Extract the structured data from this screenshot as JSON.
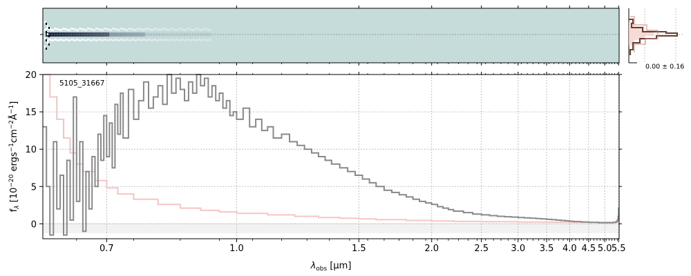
{
  "chart_data": [
    {
      "type": "heatmap",
      "panel": "2d-spectrum",
      "description_of_content": "",
      "x_axis_shared": true,
      "y_ticks": [
        ""
      ],
      "colormap": [
        "#ffffff",
        "#c5dcdb",
        "#1c2340"
      ]
    },
    {
      "type": "line",
      "panel": "spectrum",
      "object_label": "5105_31667",
      "xlabel_main": "λ",
      "xlabel_sub": "obs",
      "xlabel_unit": " [μm]",
      "ylabel": "f_λ [10^-20 ergs^-1cm^-2Å^-1]",
      "ylabel_parts": {
        "f": "f",
        "lambda": "λ",
        "main": " [10",
        "exp1": "−20",
        "mid": " ergs",
        "exp2": "−1",
        "mid2": "cm",
        "exp3": "−2",
        "angstrom": "Å",
        "exp4": "−1",
        "end": "]"
      },
      "x_scale": "reciprocal",
      "xlim": [
        0.6,
        5.52
      ],
      "ylim": [
        -2,
        20
      ],
      "x_ticks": [
        0.7,
        1.0,
        1.5,
        2.0,
        2.5,
        3.0,
        3.5,
        4.0,
        4.5,
        5.0,
        5.5
      ],
      "x_tick_labels": [
        "0.7",
        "1.0",
        "1.5",
        "2.0",
        "2.5",
        "3.0",
        "3.5",
        "4.0",
        "4.5",
        "5.0",
        "5.5"
      ],
      "y_ticks": [
        0,
        5,
        10,
        15,
        20
      ],
      "y_tick_labels": [
        "0",
        "5",
        "10",
        "15",
        "20"
      ],
      "grid": true,
      "series": [
        {
          "role": "flux",
          "color": "#888888",
          "x": [
            0.6,
            0.605,
            0.61,
            0.615,
            0.62,
            0.625,
            0.63,
            0.635,
            0.64,
            0.645,
            0.65,
            0.655,
            0.66,
            0.665,
            0.67,
            0.675,
            0.68,
            0.685,
            0.69,
            0.695,
            0.7,
            0.705,
            0.71,
            0.715,
            0.72,
            0.725,
            0.73,
            0.74,
            0.75,
            0.76,
            0.77,
            0.78,
            0.79,
            0.8,
            0.81,
            0.82,
            0.83,
            0.84,
            0.85,
            0.86,
            0.87,
            0.88,
            0.89,
            0.9,
            0.91,
            0.92,
            0.93,
            0.94,
            0.95,
            0.96,
            0.97,
            0.98,
            0.99,
            1.0,
            1.02,
            1.04,
            1.06,
            1.08,
            1.1,
            1.12,
            1.15,
            1.18,
            1.21,
            1.24,
            1.27,
            1.3,
            1.33,
            1.36,
            1.4,
            1.44,
            1.48,
            1.52,
            1.56,
            1.6,
            1.65,
            1.7,
            1.75,
            1.8,
            1.85,
            1.9,
            1.95,
            2.0,
            2.05,
            2.1,
            2.15,
            2.2,
            2.3,
            2.4,
            2.5,
            2.6,
            2.7,
            2.8,
            2.9,
            3.0,
            3.1,
            3.2,
            3.3,
            3.4,
            3.5,
            3.6,
            3.7,
            3.8,
            3.9,
            4.0,
            4.1,
            4.2,
            4.3,
            4.4,
            4.5,
            4.6,
            4.7,
            4.8,
            4.9,
            5.0,
            5.1,
            5.2,
            5.3,
            5.4,
            5.45,
            5.48,
            5.5
          ],
          "y": [
            13.0,
            5.0,
            -1.5,
            11.0,
            2.0,
            6.5,
            -1.5,
            8.5,
            0.5,
            17.0,
            3.0,
            11.0,
            -1.0,
            7.0,
            2.0,
            9.0,
            5.0,
            12.0,
            8.5,
            14.5,
            9.0,
            13.5,
            7.5,
            16.0,
            12.0,
            17.5,
            11.5,
            18.0,
            14.0,
            16.5,
            19.0,
            15.5,
            17.0,
            18.5,
            16.0,
            20.0,
            17.5,
            19.5,
            18.0,
            16.5,
            19.0,
            17.5,
            20.0,
            18.5,
            19.5,
            17.0,
            18.5,
            16.5,
            17.5,
            15.5,
            16.5,
            14.5,
            15.0,
            14.0,
            15.5,
            13.0,
            14.0,
            12.5,
            13.0,
            11.5,
            12.0,
            11.0,
            10.5,
            10.0,
            9.5,
            9.0,
            8.5,
            8.0,
            7.5,
            7.0,
            6.5,
            6.0,
            5.5,
            5.0,
            4.5,
            4.2,
            3.9,
            3.6,
            3.3,
            3.0,
            2.8,
            2.6,
            2.3,
            2.1,
            1.9,
            1.7,
            1.5,
            1.3,
            1.2,
            1.1,
            1.0,
            0.95,
            0.9,
            0.85,
            0.8,
            0.75,
            0.7,
            0.65,
            0.6,
            0.55,
            0.5,
            0.45,
            0.4,
            0.35,
            0.3,
            0.3,
            0.25,
            0.25,
            0.2,
            0.2,
            0.2,
            0.15,
            0.15,
            0.15,
            0.15,
            0.15,
            0.2,
            0.3,
            0.5,
            1.0,
            2.2
          ]
        },
        {
          "role": "model",
          "color": "#f7c4c4",
          "x": [
            0.6,
            0.61,
            0.62,
            0.63,
            0.64,
            0.65,
            0.66,
            0.68,
            0.7,
            0.72,
            0.75,
            0.8,
            0.85,
            0.9,
            0.95,
            1.0,
            1.1,
            1.2,
            1.3,
            1.4,
            1.5,
            1.6,
            1.8,
            2.0,
            2.2,
            2.5,
            3.0,
            3.5,
            4.0,
            4.5,
            5.0,
            5.4,
            5.5
          ],
          "y": [
            20.0,
            17.0,
            14.0,
            11.5,
            9.5,
            8.0,
            7.0,
            5.8,
            4.8,
            4.0,
            3.3,
            2.6,
            2.1,
            1.8,
            1.6,
            1.4,
            1.2,
            1.0,
            0.85,
            0.75,
            0.65,
            0.55,
            0.45,
            0.38,
            0.32,
            0.28,
            0.24,
            0.22,
            0.2,
            0.2,
            0.2,
            0.2,
            0.2
          ]
        }
      ]
    },
    {
      "type": "line",
      "panel": "profile",
      "annotation": "0.00 ± 0.16",
      "series": [
        {
          "role": "profile",
          "color": "#6b3e32"
        },
        {
          "role": "model-profile",
          "color": "#f5c8c0"
        }
      ]
    }
  ]
}
